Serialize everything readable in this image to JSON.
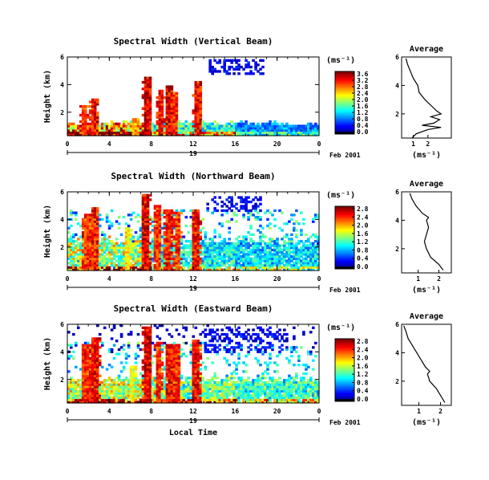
{
  "chart_data": [
    {
      "type": "heatmap",
      "title": "Spectral Width (Vertical Beam)",
      "ylabel": "Height (km)",
      "xlim": [
        0,
        24
      ],
      "ylim": [
        0.3,
        6
      ],
      "xticks": [
        "0",
        "4",
        "8",
        "12",
        "16",
        "20",
        "0"
      ],
      "yticks": [
        "2",
        "4",
        "6"
      ],
      "date_tick": "19",
      "date_label": "Feb 2001",
      "colorbar": {
        "unit": "(ms⁻¹)",
        "ticks": [
          "3.6",
          "3.2",
          "2.8",
          "2.4",
          "2.0",
          "1.6",
          "1.2",
          "0.8",
          "0.4",
          "0.0"
        ],
        "range": [
          0,
          3.8
        ]
      },
      "echo": {
        "layer_top_km": 1.2,
        "layer_values": {
          "west": 2.8,
          "mid": 1.6,
          "east": 1.0
        },
        "plumes": [
          {
            "t": 1.6,
            "w": 0.5,
            "top": 2.5,
            "v": 3.4
          },
          {
            "t": 2.5,
            "w": 0.6,
            "top": 3.0,
            "v": 3.6
          },
          {
            "t": 7.6,
            "w": 0.6,
            "top": 4.6,
            "v": 3.8
          },
          {
            "t": 8.9,
            "w": 0.5,
            "top": 3.6,
            "v": 3.6
          },
          {
            "t": 9.7,
            "w": 0.6,
            "top": 3.9,
            "v": 3.7
          },
          {
            "t": 10.2,
            "w": 0.4,
            "top": 3.4,
            "v": 3.5
          },
          {
            "t": 12.4,
            "w": 0.6,
            "top": 4.2,
            "v": 3.6
          },
          {
            "t": 6.5,
            "w": 0.5,
            "top": 1.6,
            "v": 3.0
          }
        ],
        "cirrus": [
          {
            "t0": 13.5,
            "t1": 18.8,
            "h0": 4.7,
            "h1": 5.9,
            "v": 0.6
          }
        ]
      },
      "average": {
        "title": "Average",
        "xlabel": "(ms⁻¹)",
        "xticks": [
          "1",
          "2"
        ],
        "yticks": [
          "2",
          "4",
          "6"
        ],
        "xlim": [
          0.2,
          3.6
        ],
        "ylim": [
          0.3,
          6
        ],
        "profile": [
          [
            0.9,
            0.3
          ],
          [
            1.2,
            0.6
          ],
          [
            2.0,
            0.9
          ],
          [
            2.9,
            1.05
          ],
          [
            1.6,
            1.2
          ],
          [
            2.4,
            1.35
          ],
          [
            2.8,
            1.6
          ],
          [
            2.2,
            1.8
          ],
          [
            2.9,
            2.0
          ],
          [
            2.6,
            2.2
          ],
          [
            2.3,
            2.5
          ],
          [
            1.8,
            3.0
          ],
          [
            1.4,
            3.5
          ],
          [
            1.3,
            4.0
          ],
          [
            1.0,
            4.5
          ],
          [
            0.8,
            5.0
          ],
          [
            0.6,
            5.5
          ],
          [
            0.5,
            5.9
          ]
        ]
      }
    },
    {
      "type": "heatmap",
      "title": "Spectral Width (Northward Beam)",
      "ylabel": "Height (km)",
      "xlim": [
        0,
        24
      ],
      "ylim": [
        0.3,
        6
      ],
      "xticks": [
        "0",
        "4",
        "8",
        "12",
        "16",
        "20",
        "0"
      ],
      "yticks": [
        "2",
        "4",
        "6"
      ],
      "date_tick": "19",
      "date_label": "Feb 2001",
      "colorbar": {
        "unit": "(ms⁻¹)",
        "ticks": [
          "2.8",
          "2.4",
          "2.0",
          "1.6",
          "1.2",
          "0.8",
          "0.4",
          "0.0"
        ],
        "range": [
          0,
          2.9
        ]
      },
      "echo": {
        "layer_top_km": 2.5,
        "layer_values": {
          "west": 1.6,
          "mid": 1.1,
          "east": 1.0
        },
        "plumes": [
          {
            "t": 1.9,
            "w": 0.7,
            "top": 4.4,
            "v": 2.6
          },
          {
            "t": 2.6,
            "w": 0.6,
            "top": 4.9,
            "v": 2.7
          },
          {
            "t": 7.5,
            "w": 0.6,
            "top": 5.9,
            "v": 2.8
          },
          {
            "t": 8.6,
            "w": 0.5,
            "top": 5.0,
            "v": 2.6
          },
          {
            "t": 9.6,
            "w": 0.6,
            "top": 4.8,
            "v": 2.7
          },
          {
            "t": 10.5,
            "w": 0.5,
            "top": 4.6,
            "v": 2.6
          },
          {
            "t": 12.3,
            "w": 0.6,
            "top": 4.7,
            "v": 2.7
          },
          {
            "t": 5.8,
            "w": 0.4,
            "top": 3.5,
            "v": 2.0
          }
        ],
        "cirrus": [
          {
            "t0": 13.2,
            "t1": 18.5,
            "h0": 4.6,
            "h1": 5.7,
            "v": 0.5
          }
        ]
      },
      "average": {
        "title": "Average",
        "xlabel": "(ms⁻¹)",
        "xticks": [
          "1",
          "2"
        ],
        "yticks": [
          "2",
          "4",
          "6"
        ],
        "xlim": [
          0.2,
          2.6
        ],
        "ylim": [
          0.3,
          6
        ],
        "profile": [
          [
            2.2,
            0.5
          ],
          [
            2.0,
            0.9
          ],
          [
            1.6,
            1.4
          ],
          [
            1.4,
            2.0
          ],
          [
            1.3,
            2.5
          ],
          [
            1.4,
            3.0
          ],
          [
            1.5,
            3.5
          ],
          [
            1.4,
            4.0
          ],
          [
            1.5,
            4.2
          ],
          [
            1.2,
            4.5
          ],
          [
            0.9,
            5.0
          ],
          [
            0.7,
            5.5
          ],
          [
            0.6,
            5.9
          ]
        ]
      }
    },
    {
      "type": "heatmap",
      "title": "Spectral Width (Eastward Beam)",
      "ylabel": "Height (km)",
      "xlabel": "Local Time",
      "xlim": [
        0,
        24
      ],
      "ylim": [
        0.3,
        6
      ],
      "xticks": [
        "0",
        "4",
        "8",
        "12",
        "16",
        "20",
        "0"
      ],
      "yticks": [
        "2",
        "4",
        "6"
      ],
      "date_tick": "19",
      "date_label": "Feb 2001",
      "colorbar": {
        "unit": "(ms⁻¹)",
        "ticks": [
          "2.8",
          "2.4",
          "2.0",
          "1.6",
          "1.2",
          "0.8",
          "0.4",
          "0.0"
        ],
        "range": [
          0,
          2.9
        ]
      },
      "echo": {
        "layer_top_km": 2.0,
        "layer_values": {
          "west": 1.6,
          "mid": 1.4,
          "east": 1.2
        },
        "plumes": [
          {
            "t": 1.8,
            "w": 0.7,
            "top": 4.5,
            "v": 2.6
          },
          {
            "t": 2.7,
            "w": 0.6,
            "top": 5.0,
            "v": 2.7
          },
          {
            "t": 7.6,
            "w": 0.6,
            "top": 5.9,
            "v": 2.8
          },
          {
            "t": 8.7,
            "w": 0.5,
            "top": 4.8,
            "v": 2.6
          },
          {
            "t": 9.8,
            "w": 0.6,
            "top": 4.6,
            "v": 2.7
          },
          {
            "t": 10.4,
            "w": 0.5,
            "top": 4.5,
            "v": 2.6
          },
          {
            "t": 12.3,
            "w": 0.6,
            "top": 4.9,
            "v": 2.7
          },
          {
            "t": 6.2,
            "w": 0.4,
            "top": 3.0,
            "v": 1.9
          }
        ],
        "cirrus": [
          {
            "t0": 13.0,
            "t1": 21.0,
            "h0": 4.0,
            "h1": 5.9,
            "v": 0.5
          }
        ]
      },
      "average": {
        "title": "Average",
        "xlabel": "(ms⁻¹)",
        "xticks": [
          "1",
          "2"
        ],
        "yticks": [
          "2",
          "4",
          "6"
        ],
        "xlim": [
          0.2,
          2.5
        ],
        "ylim": [
          0.3,
          6
        ],
        "profile": [
          [
            2.2,
            0.5
          ],
          [
            2.0,
            1.0
          ],
          [
            1.8,
            1.5
          ],
          [
            1.5,
            2.0
          ],
          [
            1.4,
            2.5
          ],
          [
            1.5,
            2.7
          ],
          [
            1.3,
            3.0
          ],
          [
            1.1,
            3.5
          ],
          [
            0.9,
            4.0
          ],
          [
            0.7,
            4.5
          ],
          [
            0.5,
            5.0
          ],
          [
            0.4,
            5.5
          ],
          [
            0.3,
            5.9
          ]
        ]
      }
    }
  ]
}
